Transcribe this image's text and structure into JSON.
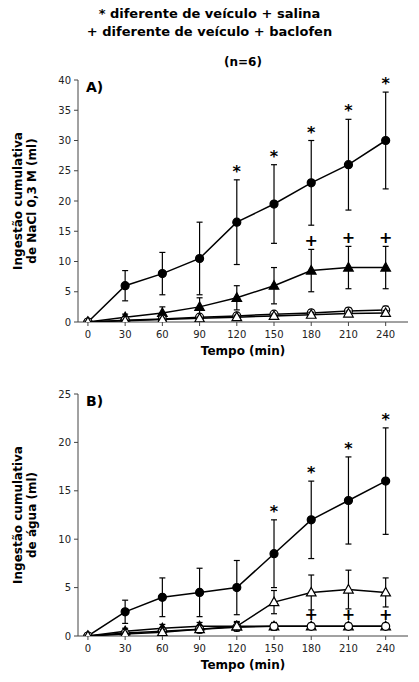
{
  "chart_data": [
    {
      "type": "line",
      "title": "* diferente de veículo + salina",
      "subtitle": "+ diferente de veículo + baclofen",
      "annotations": [
        {
          "text": "(n=6)"
        }
      ],
      "panel_label": "A)",
      "x_label": "Tempo (min)",
      "y_label": "Ingestão cumulativa\nde NaCl 0,3 M (ml)",
      "x": [
        0,
        30,
        60,
        90,
        120,
        150,
        180,
        210,
        240
      ],
      "xlim": [
        -8,
        258
      ],
      "xticks": [
        0,
        30,
        60,
        90,
        120,
        150,
        180,
        210,
        240
      ],
      "ylim": [
        0,
        40
      ],
      "yticks": [
        0,
        5,
        10,
        15,
        20,
        25,
        30,
        35,
        40
      ],
      "grid": false,
      "series": [
        {
          "color": "black",
          "marker": "filled-circle",
          "values": [
            0,
            6.0,
            8.0,
            10.5,
            16.5,
            19.5,
            23.0,
            26.0,
            30.0
          ],
          "errors": [
            0,
            2.5,
            3.5,
            6.0,
            7.0,
            6.5,
            7.0,
            7.5,
            8.0
          ],
          "annotations": [
            {
              "x": 120,
              "text": "*"
            },
            {
              "x": 150,
              "text": "*"
            },
            {
              "x": 180,
              "text": "*"
            },
            {
              "x": 210,
              "text": "*"
            },
            {
              "x": 240,
              "text": "*"
            }
          ]
        },
        {
          "color": "black",
          "marker": "filled-triangle",
          "values": [
            0,
            0.8,
            1.5,
            2.5,
            4.0,
            6.0,
            8.5,
            9.0,
            9.0
          ],
          "errors": [
            0,
            0.5,
            1.0,
            1.5,
            2.0,
            3.0,
            3.5,
            3.5,
            3.5
          ],
          "annotations": [
            {
              "x": 180,
              "text": "+"
            },
            {
              "x": 210,
              "text": "+"
            },
            {
              "x": 240,
              "text": "+"
            }
          ]
        },
        {
          "color": "black",
          "marker": "open-circle",
          "values": [
            0,
            0.3,
            0.5,
            0.8,
            1.0,
            1.3,
            1.5,
            1.8,
            2.0
          ],
          "errors": [
            0,
            0.2,
            0.3,
            0.3,
            0.4,
            0.4,
            0.5,
            0.5,
            0.6
          ]
        },
        {
          "color": "black",
          "marker": "open-triangle",
          "values": [
            0,
            0.2,
            0.4,
            0.6,
            0.8,
            1.0,
            1.2,
            1.4,
            1.5
          ],
          "errors": [
            0,
            0.1,
            0.2,
            0.2,
            0.3,
            0.3,
            0.4,
            0.4,
            0.4
          ]
        }
      ]
    },
    {
      "type": "line",
      "panel_label": "B)",
      "x_label": "Tempo (min)",
      "y_label": "Ingestão cumulativa\nde água (ml)",
      "x": [
        0,
        30,
        60,
        90,
        120,
        150,
        180,
        210,
        240
      ],
      "xlim": [
        -8,
        258
      ],
      "xticks": [
        0,
        30,
        60,
        90,
        120,
        150,
        180,
        210,
        240
      ],
      "ylim": [
        0,
        25
      ],
      "yticks": [
        0,
        5,
        10,
        15,
        20,
        25
      ],
      "grid": false,
      "series": [
        {
          "color": "black",
          "marker": "filled-circle",
          "values": [
            0,
            2.5,
            4.0,
            4.5,
            5.0,
            8.5,
            12.0,
            14.0,
            16.0
          ],
          "errors": [
            0,
            1.2,
            2.0,
            2.5,
            2.8,
            3.5,
            4.0,
            4.5,
            5.5
          ],
          "annotations": [
            {
              "x": 150,
              "text": "*"
            },
            {
              "x": 180,
              "text": "*"
            },
            {
              "x": 210,
              "text": "*"
            },
            {
              "x": 240,
              "text": "*"
            }
          ]
        },
        {
          "color": "black",
          "marker": "filled-triangle",
          "values": [
            0,
            0.5,
            0.8,
            1.0,
            1.0,
            1.0,
            1.0,
            1.0,
            1.0
          ],
          "errors": [
            0,
            0.3,
            0.4,
            0.4,
            0.4,
            0.4,
            0.3,
            0.3,
            0.3
          ],
          "annotations": [
            {
              "x": 180,
              "text": "+"
            },
            {
              "x": 210,
              "text": "+"
            },
            {
              "x": 240,
              "text": "+"
            }
          ]
        },
        {
          "color": "black",
          "marker": "open-circle",
          "values": [
            0,
            0.3,
            0.5,
            0.7,
            0.9,
            1.0,
            1.0,
            1.0,
            1.0
          ],
          "errors": [
            0,
            0.2,
            0.3,
            0.3,
            0.3,
            0.3,
            0.3,
            0.3,
            0.3
          ]
        },
        {
          "color": "black",
          "marker": "open-triangle",
          "values": [
            0,
            0.2,
            0.4,
            0.7,
            1.0,
            3.5,
            4.5,
            4.8,
            4.5
          ],
          "errors": [
            0,
            0.2,
            0.3,
            0.4,
            0.5,
            1.2,
            1.8,
            2.0,
            1.5
          ]
        }
      ]
    }
  ]
}
